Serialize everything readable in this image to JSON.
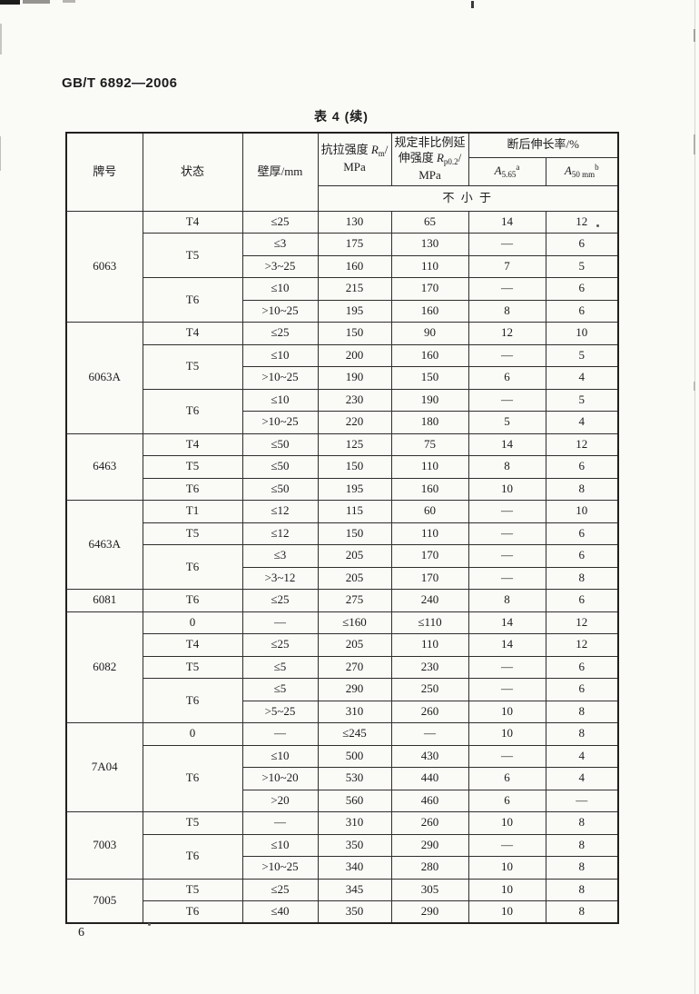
{
  "page": {
    "standard_code": "GB/T 6892—2006",
    "table_title": "表 4 (续)",
    "page_number": "6"
  },
  "table": {
    "header": {
      "grade": "牌号",
      "temper": "状态",
      "thickness": "壁厚/mm",
      "tensile": {
        "label": "抗拉强度 ",
        "symbol": "R",
        "subscript": "m",
        "slash": "/",
        "unit": "MPa"
      },
      "proof": {
        "line1": "规定非比例延",
        "line2_prefix": "伸强度 ",
        "symbol": "R",
        "subscript": "p0.2",
        "slash": "/",
        "unit": "MPa"
      },
      "elongation": "断后伸长率/%",
      "a565": {
        "symbol": "A",
        "subscript": "5.65",
        "superscript": "a"
      },
      "a50": {
        "symbol": "A",
        "subscript": "50 mm",
        "superscript": "b"
      },
      "not_less_than": "不   小   于"
    },
    "groups": [
      {
        "grade": "6063",
        "tempers": [
          {
            "temper": "T4",
            "rows": [
              {
                "thickness": "≤25",
                "tensile": "130",
                "proof": "65",
                "a565": "14",
                "a50": "12"
              }
            ]
          },
          {
            "temper": "T5",
            "rows": [
              {
                "thickness": "≤3",
                "tensile": "175",
                "proof": "130",
                "a565": "—",
                "a50": "6"
              },
              {
                "thickness": ">3~25",
                "tensile": "160",
                "proof": "110",
                "a565": "7",
                "a50": "5"
              }
            ]
          },
          {
            "temper": "T6",
            "rows": [
              {
                "thickness": "≤10",
                "tensile": "215",
                "proof": "170",
                "a565": "—",
                "a50": "6"
              },
              {
                "thickness": ">10~25",
                "tensile": "195",
                "proof": "160",
                "a565": "8",
                "a50": "6"
              }
            ]
          }
        ]
      },
      {
        "grade": "6063A",
        "tempers": [
          {
            "temper": "T4",
            "rows": [
              {
                "thickness": "≤25",
                "tensile": "150",
                "proof": "90",
                "a565": "12",
                "a50": "10"
              }
            ]
          },
          {
            "temper": "T5",
            "rows": [
              {
                "thickness": "≤10",
                "tensile": "200",
                "proof": "160",
                "a565": "—",
                "a50": "5"
              },
              {
                "thickness": ">10~25",
                "tensile": "190",
                "proof": "150",
                "a565": "6",
                "a50": "4"
              }
            ]
          },
          {
            "temper": "T6",
            "rows": [
              {
                "thickness": "≤10",
                "tensile": "230",
                "proof": "190",
                "a565": "—",
                "a50": "5"
              },
              {
                "thickness": ">10~25",
                "tensile": "220",
                "proof": "180",
                "a565": "5",
                "a50": "4"
              }
            ]
          }
        ]
      },
      {
        "grade": "6463",
        "tempers": [
          {
            "temper": "T4",
            "rows": [
              {
                "thickness": "≤50",
                "tensile": "125",
                "proof": "75",
                "a565": "14",
                "a50": "12"
              }
            ]
          },
          {
            "temper": "T5",
            "rows": [
              {
                "thickness": "≤50",
                "tensile": "150",
                "proof": "110",
                "a565": "8",
                "a50": "6"
              }
            ]
          },
          {
            "temper": "T6",
            "rows": [
              {
                "thickness": "≤50",
                "tensile": "195",
                "proof": "160",
                "a565": "10",
                "a50": "8"
              }
            ]
          }
        ]
      },
      {
        "grade": "6463A",
        "tempers": [
          {
            "temper": "T1",
            "rows": [
              {
                "thickness": "≤12",
                "tensile": "115",
                "proof": "60",
                "a565": "—",
                "a50": "10"
              }
            ]
          },
          {
            "temper": "T5",
            "rows": [
              {
                "thickness": "≤12",
                "tensile": "150",
                "proof": "110",
                "a565": "—",
                "a50": "6"
              }
            ]
          },
          {
            "temper": "T6",
            "rows": [
              {
                "thickness": "≤3",
                "tensile": "205",
                "proof": "170",
                "a565": "—",
                "a50": "6"
              },
              {
                "thickness": ">3~12",
                "tensile": "205",
                "proof": "170",
                "a565": "—",
                "a50": "8"
              }
            ]
          }
        ]
      },
      {
        "grade": "6081",
        "tempers": [
          {
            "temper": "T6",
            "rows": [
              {
                "thickness": "≤25",
                "tensile": "275",
                "proof": "240",
                "a565": "8",
                "a50": "6"
              }
            ]
          }
        ]
      },
      {
        "grade": "6082",
        "tempers": [
          {
            "temper": "0",
            "rows": [
              {
                "thickness": "—",
                "tensile": "≤160",
                "proof": "≤110",
                "a565": "14",
                "a50": "12"
              }
            ]
          },
          {
            "temper": "T4",
            "rows": [
              {
                "thickness": "≤25",
                "tensile": "205",
                "proof": "110",
                "a565": "14",
                "a50": "12"
              }
            ]
          },
          {
            "temper": "T5",
            "rows": [
              {
                "thickness": "≤5",
                "tensile": "270",
                "proof": "230",
                "a565": "—",
                "a50": "6"
              }
            ]
          },
          {
            "temper": "T6",
            "rows": [
              {
                "thickness": "≤5",
                "tensile": "290",
                "proof": "250",
                "a565": "—",
                "a50": "6"
              },
              {
                "thickness": ">5~25",
                "tensile": "310",
                "proof": "260",
                "a565": "10",
                "a50": "8"
              }
            ]
          }
        ]
      },
      {
        "grade": "7A04",
        "tempers": [
          {
            "temper": "0",
            "rows": [
              {
                "thickness": "—",
                "tensile": "≤245",
                "proof": "—",
                "a565": "10",
                "a50": "8"
              }
            ]
          },
          {
            "temper": "T6",
            "rows": [
              {
                "thickness": "≤10",
                "tensile": "500",
                "proof": "430",
                "a565": "—",
                "a50": "4"
              },
              {
                "thickness": ">10~20",
                "tensile": "530",
                "proof": "440",
                "a565": "6",
                "a50": "4"
              },
              {
                "thickness": ">20",
                "tensile": "560",
                "proof": "460",
                "a565": "6",
                "a50": "—"
              }
            ]
          }
        ]
      },
      {
        "grade": "7003",
        "tempers": [
          {
            "temper": "T5",
            "rows": [
              {
                "thickness": "—",
                "tensile": "310",
                "proof": "260",
                "a565": "10",
                "a50": "8"
              }
            ]
          },
          {
            "temper": "T6",
            "rows": [
              {
                "thickness": "≤10",
                "tensile": "350",
                "proof": "290",
                "a565": "—",
                "a50": "8"
              },
              {
                "thickness": ">10~25",
                "tensile": "340",
                "proof": "280",
                "a565": "10",
                "a50": "8"
              }
            ]
          }
        ]
      },
      {
        "grade": "7005",
        "tempers": [
          {
            "temper": "T5",
            "rows": [
              {
                "thickness": "≤25",
                "tensile": "345",
                "proof": "305",
                "a565": "10",
                "a50": "8"
              }
            ]
          },
          {
            "temper": "T6",
            "rows": [
              {
                "thickness": "≤40",
                "tensile": "350",
                "proof": "290",
                "a565": "10",
                "a50": "8"
              }
            ]
          }
        ]
      }
    ]
  }
}
